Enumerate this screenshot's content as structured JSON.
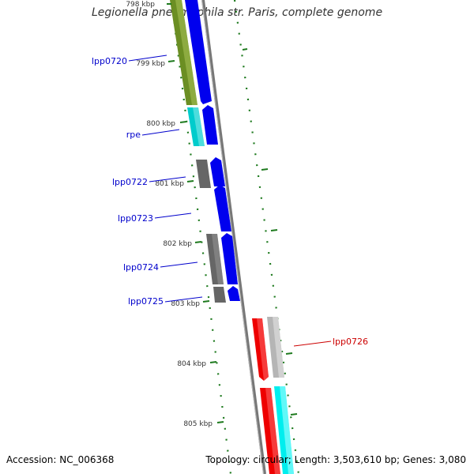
{
  "title": "Legionella pneumophila str. Paris, complete genome",
  "footer": {
    "accession": "Accession: NC_006368",
    "stats": "Topology: circular; Length: 3,503,610 bp; Genes: 3,080"
  },
  "colors": {
    "backbone": "#888888",
    "ticks": "#1e7a1e",
    "gene_label": "#0000cc",
    "highlight_label": "#cc0000",
    "olive": "#6b8e23",
    "cyan": "#00cccc",
    "blue": "#0000ee",
    "gray": "#666666",
    "lightgray": "#bbbbbb",
    "red": "#ee0000",
    "brightcyan": "#00eeee"
  },
  "position_labels": [
    "798 kbp",
    "799 kbp",
    "800 kbp",
    "801 kbp",
    "802 kbp",
    "803 kbp",
    "804 kbp",
    "805 kbp"
  ],
  "gene_labels": [
    {
      "text": "lpp0720",
      "highlight": false
    },
    {
      "text": "rpe",
      "highlight": false
    },
    {
      "text": "lpp0722",
      "highlight": false
    },
    {
      "text": "lpp0723",
      "highlight": false
    },
    {
      "text": "lpp0724",
      "highlight": false
    },
    {
      "text": "lpp0725",
      "highlight": false
    },
    {
      "text": "lpp0726",
      "highlight": true
    }
  ]
}
